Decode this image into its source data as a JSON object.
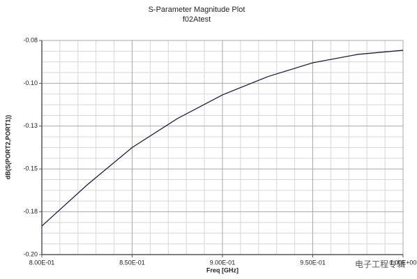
{
  "chart_data": {
    "type": "line",
    "title": "S-Parameter Magnitude Plot",
    "subtitle": "f02Atest",
    "x_label": "Freq [GHz]",
    "y_label": "dB(S(PORT2,PORT1))",
    "watermark": "电子工程专辑",
    "x": [
      0.8,
      0.825,
      0.85,
      0.875,
      0.9,
      0.925,
      0.95,
      0.975,
      1.0
    ],
    "series": [
      {
        "name": "dB(S(PORT2,PORT1))",
        "color": "#1c1c3c",
        "values": [
          -0.184,
          -0.161,
          -0.14,
          -0.1238,
          -0.1105,
          -0.1003,
          -0.0925,
          -0.0878,
          -0.0855
        ]
      }
    ],
    "xlim": [
      0.8,
      1.0
    ],
    "ylim": [
      -0.2,
      -0.08
    ],
    "xticks": [
      {
        "value": 0.8,
        "label": "8.00E-01"
      },
      {
        "value": 0.85,
        "label": "8.50E-01"
      },
      {
        "value": 0.9,
        "label": "9.00E-01"
      },
      {
        "value": 0.95,
        "label": "9.50E-01"
      },
      {
        "value": 1.0,
        "label": "1.00E+00"
      }
    ],
    "yticks": [
      {
        "value": -0.2,
        "label": "-0.20"
      },
      {
        "value": -0.176,
        "label": "-0.18"
      },
      {
        "value": -0.152,
        "label": "-0.15"
      },
      {
        "value": -0.128,
        "label": "-0.13"
      },
      {
        "value": -0.104,
        "label": "-0.10"
      },
      {
        "value": -0.08,
        "label": "-0.08"
      }
    ],
    "grid": true,
    "minor_grid": {
      "x": 5,
      "y": 4
    }
  }
}
